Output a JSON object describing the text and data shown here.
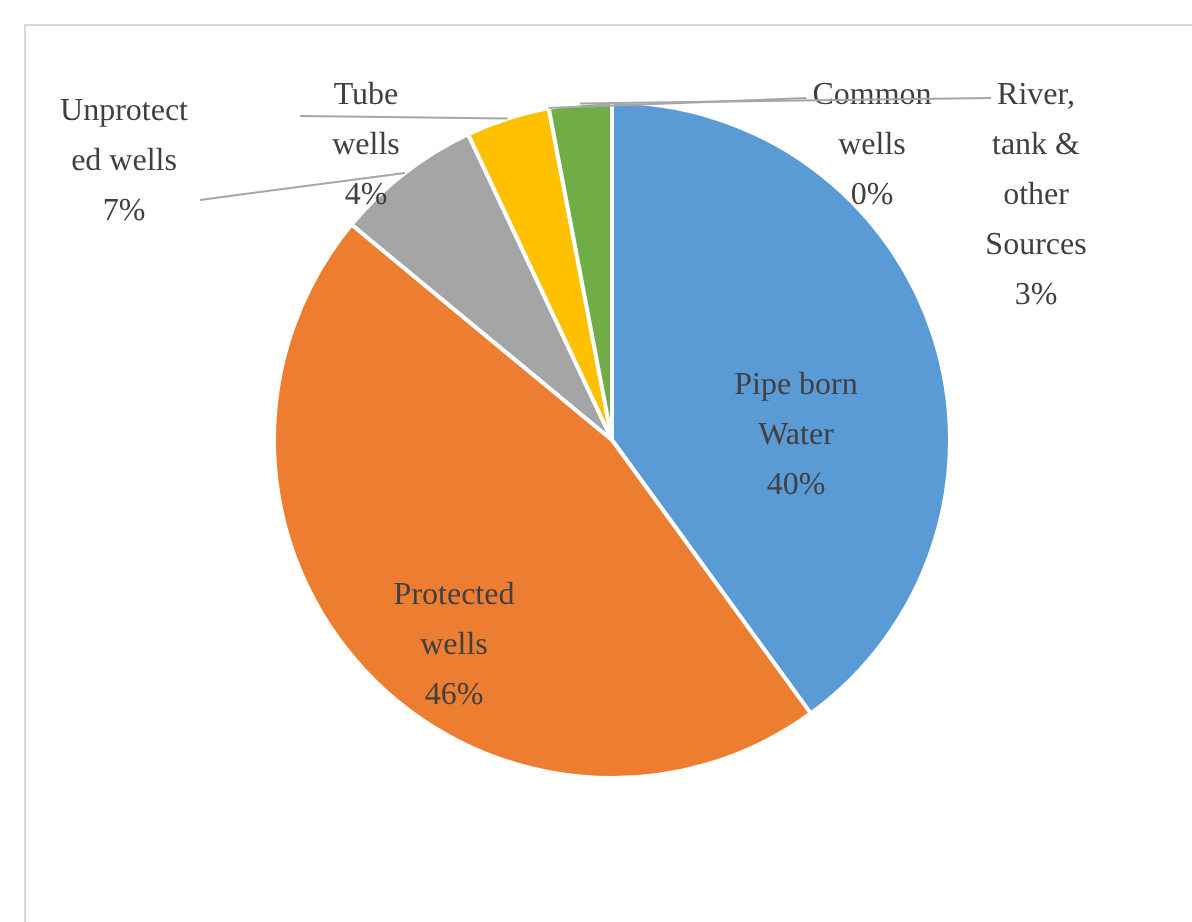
{
  "chart_data": {
    "type": "pie",
    "categories": [
      "Pipe born Water",
      "Protected wells",
      "Unprotected wells",
      "Tube wells",
      "Common wells",
      "River, tank & other Sources"
    ],
    "values": [
      40,
      46,
      7,
      4,
      0,
      3
    ],
    "colors": [
      "#5b9bd5",
      "#ed7d31",
      "#a5a5a5",
      "#ffc000",
      "#4472c4",
      "#70ad47"
    ],
    "value_labels": [
      "40%",
      "46%",
      "7%",
      "4%",
      "0%",
      "3%"
    ],
    "legend": false
  }
}
